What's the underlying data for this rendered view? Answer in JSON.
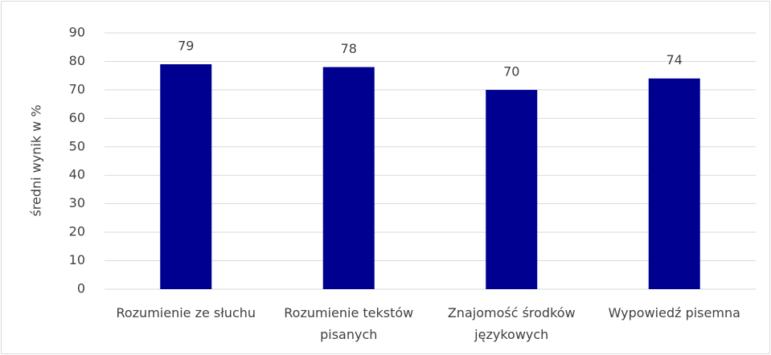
{
  "chart_data": {
    "type": "bar",
    "y_label": "średni wynik w %",
    "categories": [
      "Rozumienie ze słuchu",
      "Rozumienie tekstów pisanych",
      "Znajomość środków językowych",
      "Wypowiedź pisemna"
    ],
    "values": [
      79,
      78,
      70,
      74
    ],
    "color": "#000090",
    "ylim": [
      0,
      90
    ],
    "yticks": [
      0,
      10,
      20,
      30,
      40,
      50,
      60,
      70,
      80,
      90
    ],
    "grid": true
  }
}
